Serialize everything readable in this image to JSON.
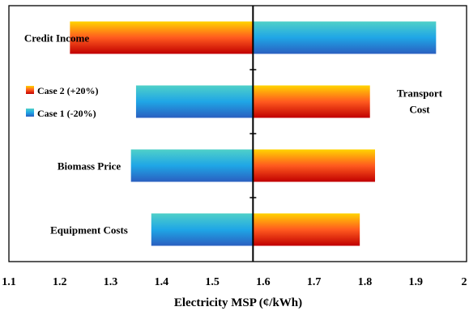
{
  "chart_data": {
    "type": "bar",
    "orientation": "horizontal",
    "title": "",
    "xlabel": "Electricity MSP (¢/kWh)",
    "ylabel": "",
    "xlim": [
      1.1,
      2.0
    ],
    "xticks": [
      "1.1",
      "1.2",
      "1.3",
      "1.4",
      "1.5",
      "1.6",
      "1.7",
      "1.8",
      "1.9",
      "2"
    ],
    "baseline": 1.58,
    "grid": false,
    "legend_position": "left",
    "categories": [
      "Credit Income",
      "Transport Cost",
      "Biomass Price",
      "Equipment Costs"
    ],
    "series": [
      {
        "name": "Case 2 (+20%)",
        "values": [
          1.22,
          1.81,
          1.82,
          1.79
        ],
        "color_top": "#ffd400",
        "color_mid": "#ff5a1f",
        "color_bottom": "#c00000"
      },
      {
        "name": "Case 1 (-20%)",
        "values": [
          1.94,
          1.35,
          1.34,
          1.38
        ],
        "color_top": "#4fd0c8",
        "color_mid": "#1fa6e6",
        "color_bottom": "#2a5fc0"
      }
    ]
  }
}
